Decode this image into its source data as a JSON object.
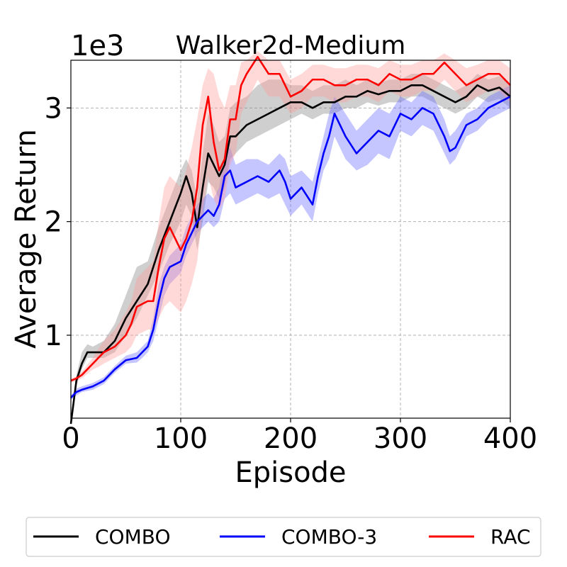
{
  "chart_data": {
    "type": "line",
    "title": "Walker2d-Medium",
    "xlabel": "Episode",
    "ylabel": "Average Return",
    "y_multiplier_label": "1e3",
    "xlim": [
      0,
      400
    ],
    "ylim": [
      0.27,
      3.42
    ],
    "xticks": [
      0,
      100,
      200,
      300,
      400
    ],
    "xtick_labels": [
      "0",
      "100",
      "200",
      "300",
      "400"
    ],
    "yticks": [
      1,
      2,
      3
    ],
    "ytick_labels": [
      "1",
      "2",
      "3"
    ],
    "grid": true,
    "legend": {
      "placement": "bottom-outside",
      "ncol": 3
    },
    "series": [
      {
        "name": "COMBO",
        "color": "#000000",
        "band_color": "#808080",
        "x": [
          0,
          5,
          10,
          15,
          20,
          30,
          40,
          50,
          60,
          70,
          80,
          90,
          100,
          105,
          110,
          115,
          120,
          125,
          130,
          135,
          140,
          145,
          150,
          160,
          170,
          180,
          190,
          200,
          210,
          220,
          230,
          240,
          250,
          260,
          270,
          280,
          290,
          300,
          310,
          320,
          330,
          340,
          350,
          360,
          370,
          380,
          390,
          400
        ],
        "y": [
          0.22,
          0.6,
          0.75,
          0.85,
          0.85,
          0.85,
          0.95,
          1.15,
          1.3,
          1.45,
          1.75,
          2.0,
          2.25,
          2.4,
          2.25,
          1.95,
          2.3,
          2.6,
          2.5,
          2.4,
          2.5,
          2.75,
          2.75,
          2.85,
          2.9,
          2.95,
          3.0,
          3.05,
          3.05,
          3.0,
          3.05,
          3.05,
          3.1,
          3.1,
          3.15,
          3.12,
          3.15,
          3.15,
          3.2,
          3.2,
          3.15,
          3.1,
          3.05,
          3.1,
          3.2,
          3.15,
          3.18,
          3.1
        ],
        "lower": [
          0.2,
          0.55,
          0.7,
          0.8,
          0.8,
          0.8,
          0.85,
          1.0,
          1.15,
          1.35,
          1.55,
          1.8,
          2.0,
          2.15,
          2.05,
          1.75,
          2.0,
          2.35,
          2.3,
          2.2,
          2.3,
          2.55,
          2.6,
          2.7,
          2.75,
          2.8,
          2.85,
          2.9,
          2.95,
          2.9,
          2.95,
          2.95,
          3.0,
          3.0,
          3.05,
          3.02,
          3.05,
          3.05,
          3.1,
          3.1,
          3.05,
          3.0,
          2.95,
          3.0,
          3.1,
          3.05,
          3.08,
          3.0
        ],
        "upper": [
          0.25,
          0.65,
          0.85,
          0.92,
          0.9,
          0.95,
          1.1,
          1.35,
          1.6,
          1.65,
          1.95,
          2.2,
          2.45,
          2.55,
          2.45,
          2.2,
          2.6,
          2.95,
          2.85,
          2.7,
          2.75,
          3.0,
          3.05,
          3.1,
          3.2,
          3.25,
          3.25,
          3.2,
          3.2,
          3.15,
          3.2,
          3.2,
          3.25,
          3.2,
          3.25,
          3.22,
          3.25,
          3.25,
          3.3,
          3.3,
          3.25,
          3.2,
          3.15,
          3.2,
          3.3,
          3.25,
          3.28,
          3.2
        ]
      },
      {
        "name": "COMBO-3",
        "color": "#0000ff",
        "band_color": "#6666ff",
        "x": [
          0,
          5,
          10,
          20,
          30,
          40,
          50,
          60,
          65,
          70,
          75,
          80,
          85,
          90,
          100,
          105,
          110,
          115,
          120,
          125,
          130,
          135,
          140,
          145,
          150,
          160,
          170,
          180,
          190,
          195,
          200,
          210,
          220,
          225,
          230,
          235,
          240,
          250,
          260,
          270,
          280,
          290,
          300,
          310,
          320,
          330,
          340,
          345,
          350,
          360,
          370,
          380,
          390,
          400
        ],
        "y": [
          0.45,
          0.5,
          0.52,
          0.55,
          0.6,
          0.7,
          0.78,
          0.8,
          0.85,
          0.9,
          1.05,
          1.3,
          1.5,
          1.6,
          1.65,
          1.8,
          1.9,
          2.0,
          2.05,
          2.1,
          2.05,
          2.15,
          2.4,
          2.45,
          2.3,
          2.35,
          2.4,
          2.35,
          2.45,
          2.35,
          2.2,
          2.3,
          2.15,
          2.4,
          2.6,
          2.75,
          2.95,
          2.75,
          2.6,
          2.7,
          2.8,
          2.75,
          2.95,
          2.9,
          3.0,
          2.95,
          2.75,
          2.62,
          2.65,
          2.85,
          2.9,
          3.0,
          3.05,
          3.1
        ],
        "lower": [
          0.43,
          0.47,
          0.5,
          0.52,
          0.57,
          0.67,
          0.75,
          0.76,
          0.8,
          0.85,
          0.95,
          1.15,
          1.35,
          1.45,
          1.55,
          1.7,
          1.8,
          1.9,
          1.95,
          2.0,
          1.95,
          2.0,
          2.2,
          2.25,
          2.15,
          2.2,
          2.25,
          2.2,
          2.25,
          2.15,
          2.05,
          2.15,
          2.0,
          2.25,
          2.45,
          2.55,
          2.75,
          2.55,
          2.45,
          2.5,
          2.6,
          2.55,
          2.8,
          2.75,
          2.85,
          2.8,
          2.6,
          2.5,
          2.55,
          2.75,
          2.8,
          2.9,
          2.95,
          3.0
        ],
        "upper": [
          0.47,
          0.53,
          0.55,
          0.58,
          0.63,
          0.73,
          0.82,
          0.85,
          0.9,
          0.95,
          1.15,
          1.45,
          1.6,
          1.7,
          1.8,
          1.95,
          2.05,
          2.15,
          2.2,
          2.25,
          2.2,
          2.3,
          2.6,
          2.65,
          2.5,
          2.55,
          2.55,
          2.5,
          2.6,
          2.55,
          2.4,
          2.45,
          2.35,
          2.55,
          2.75,
          2.95,
          3.1,
          2.95,
          2.8,
          2.9,
          3.0,
          2.95,
          3.1,
          3.05,
          3.15,
          3.1,
          2.9,
          2.75,
          2.8,
          2.95,
          3.0,
          3.1,
          3.15,
          3.2
        ]
      },
      {
        "name": "RAC",
        "color": "#ff0000",
        "band_color": "#ff9999",
        "x": [
          0,
          5,
          10,
          15,
          20,
          25,
          30,
          40,
          50,
          55,
          60,
          70,
          75,
          80,
          85,
          90,
          95,
          100,
          105,
          110,
          115,
          120,
          125,
          130,
          135,
          140,
          145,
          150,
          155,
          160,
          170,
          180,
          190,
          200,
          210,
          220,
          230,
          240,
          250,
          260,
          270,
          280,
          290,
          300,
          310,
          320,
          330,
          340,
          350,
          360,
          370,
          380,
          390,
          400
        ],
        "y": [
          0.6,
          0.62,
          0.65,
          0.7,
          0.75,
          0.8,
          0.85,
          0.9,
          1.0,
          1.1,
          1.25,
          1.3,
          1.3,
          1.6,
          1.85,
          1.95,
          1.85,
          1.75,
          1.85,
          2.0,
          2.3,
          2.85,
          3.1,
          2.7,
          2.45,
          2.55,
          2.9,
          2.9,
          3.2,
          3.3,
          3.45,
          3.3,
          3.3,
          3.1,
          3.15,
          3.25,
          3.25,
          3.2,
          3.2,
          3.25,
          3.25,
          3.2,
          3.3,
          3.25,
          3.25,
          3.3,
          3.3,
          3.4,
          3.3,
          3.2,
          3.25,
          3.3,
          3.3,
          3.2
        ],
        "lower": [
          0.58,
          0.6,
          0.62,
          0.66,
          0.7,
          0.72,
          0.75,
          0.8,
          0.85,
          0.9,
          1.0,
          1.05,
          1.05,
          1.15,
          1.25,
          1.3,
          1.25,
          1.2,
          1.3,
          1.45,
          1.65,
          2.1,
          2.4,
          2.2,
          2.1,
          2.2,
          2.5,
          2.6,
          2.95,
          3.05,
          3.25,
          3.1,
          3.1,
          2.95,
          3.0,
          3.1,
          3.1,
          3.05,
          3.05,
          3.1,
          3.1,
          3.05,
          3.15,
          3.1,
          3.1,
          3.15,
          3.15,
          3.25,
          3.15,
          3.05,
          3.1,
          3.15,
          3.15,
          3.05
        ],
        "upper": [
          0.62,
          0.64,
          0.68,
          0.74,
          0.8,
          0.88,
          0.95,
          1.05,
          1.2,
          1.3,
          1.5,
          1.6,
          1.65,
          2.0,
          2.3,
          2.4,
          2.35,
          2.3,
          2.45,
          2.65,
          2.9,
          3.2,
          3.35,
          3.3,
          3.1,
          3.0,
          3.2,
          3.2,
          3.4,
          3.42,
          3.5,
          3.42,
          3.42,
          3.25,
          3.3,
          3.38,
          3.38,
          3.35,
          3.35,
          3.38,
          3.38,
          3.35,
          3.42,
          3.38,
          3.38,
          3.42,
          3.42,
          3.48,
          3.42,
          3.35,
          3.38,
          3.42,
          3.42,
          3.35
        ]
      }
    ]
  }
}
